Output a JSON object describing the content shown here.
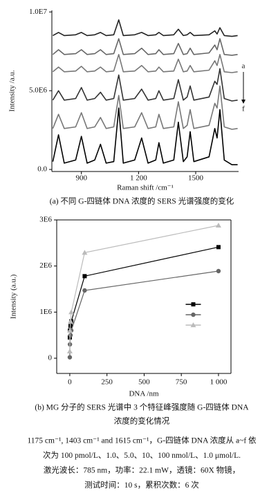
{
  "chart_data": [
    {
      "type": "line",
      "y_label": "Intensity /a.u.",
      "x_label": "Raman shift /cm⁻¹",
      "caption": "(a) 不同 G-四链体 DNA 浓度的 SERS 光谱强度的变化",
      "annotations": [
        "a",
        "f"
      ],
      "xlim": [
        745,
        1725
      ],
      "ylim": [
        -130000,
        10100000
      ],
      "xticks": [
        900,
        {
          "value": 1200,
          "label": "1 200"
        },
        1500
      ],
      "yticks": [
        {
          "value": 10000000,
          "label": "1.0E7"
        },
        {
          "value": 5000000,
          "label": "5.0E6"
        },
        {
          "value": 0,
          "label": "0.0"
        }
      ],
      "x": [
        750,
        780,
        810,
        870,
        900,
        930,
        970,
        1000,
        1030,
        1070,
        1096,
        1120,
        1180,
        1216,
        1250,
        1290,
        1307,
        1330,
        1385,
        1409,
        1435,
        1455,
        1471,
        1490,
        1570,
        1600,
        1612,
        1627,
        1650,
        1690,
        1720
      ],
      "series": [
        {
          "color": "#222222",
          "values": [
            8500000.0,
            8700000.0,
            8500000.0,
            8550000.0,
            8700000.0,
            8500000.0,
            8550000.0,
            8700000.0,
            8500000.0,
            8550000.0,
            9500000.0,
            8500000.0,
            8550000.0,
            8700000.0,
            8500000.0,
            8550000.0,
            8700000.0,
            8500000.0,
            8550000.0,
            8900000.0,
            8500000.0,
            8550000.0,
            8700000.0,
            8500000.0,
            8550000.0,
            8800000.0,
            8600000.0,
            9000000.0,
            8500000.0,
            8450000.0,
            8500000.0
          ]
        },
        {
          "color": "#666666",
          "values": [
            7300000.0,
            7600000.0,
            7300000.0,
            7350000.0,
            7600000.0,
            7300000.0,
            7350000.0,
            7600000.0,
            7300000.0,
            7350000.0,
            8300000.0,
            7300000.0,
            7350000.0,
            7700000.0,
            7300000.0,
            7350000.0,
            7600000.0,
            7300000.0,
            7350000.0,
            8000000.0,
            7300000.0,
            7350000.0,
            7700000.0,
            7300000.0,
            7400000.0,
            7900000.0,
            7600000.0,
            8300000.0,
            7300000.0,
            7250000.0,
            7300000.0
          ]
        },
        {
          "color": "#777777",
          "values": [
            6200000.0,
            6500000.0,
            6200000.0,
            6250000.0,
            6550000.0,
            6200000.0,
            6250000.0,
            6500000.0,
            6200000.0,
            6250000.0,
            7300000.0,
            6200000.0,
            6250000.0,
            6600000.0,
            6200000.0,
            6250000.0,
            6500000.0,
            6200000.0,
            6250000.0,
            7000000.0,
            6200000.0,
            6250000.0,
            6600000.0,
            6200000.0,
            6300000.0,
            6900000.0,
            6600000.0,
            7300000.0,
            6200000.0,
            6150000.0,
            6200000.0
          ]
        },
        {
          "color": "#333333",
          "values": [
            4400000.0,
            5000000.0,
            4400000.0,
            4500000.0,
            5200000.0,
            4400000.0,
            4500000.0,
            4900000.0,
            4400000.0,
            4500000.0,
            6000000.0,
            4400000.0,
            4500000.0,
            5100000.0,
            4400000.0,
            4500000.0,
            5000000.0,
            4400000.0,
            4500000.0,
            5700000.0,
            4400000.0,
            4600000.0,
            5300000.0,
            4400000.0,
            4600000.0,
            5600000.0,
            5400000.0,
            6400000.0,
            4500000.0,
            4350000.0,
            4400000.0
          ]
        },
        {
          "color": "#777777",
          "values": [
            2600000.0,
            3500000.0,
            2600000.0,
            2700000.0,
            3600000.0,
            2600000.0,
            2700000.0,
            3300000.0,
            2600000.0,
            2700000.0,
            4700000.0,
            2600000.0,
            2700000.0,
            3600000.0,
            2600000.0,
            2700000.0,
            3500000.0,
            2600000.0,
            2700000.0,
            4300000.0,
            2600000.0,
            2800000.0,
            3800000.0,
            2600000.0,
            2800000.0,
            4200000.0,
            3900000.0,
            5300000.0,
            2700000.0,
            2550000.0,
            2600000.0
          ]
        },
        {
          "color": "#000000",
          "values": [
            500000.0,
            2200000.0,
            400000.0,
            600000.0,
            2100000.0,
            400000.0,
            600000.0,
            1600000.0,
            400000.0,
            500000.0,
            3900000.0,
            400000.0,
            600000.0,
            2000000.0,
            400000.0,
            600000.0,
            1700000.0,
            400000.0,
            600000.0,
            3000000.0,
            500000.0,
            800000.0,
            2400000.0,
            500000.0,
            800000.0,
            2600000.0,
            2000000.0,
            3800000.0,
            600000.0,
            300000.0,
            300000.0
          ]
        }
      ]
    },
    {
      "type": "line",
      "y_label": "Intensity (a.u.)",
      "x_label": "DNA /nm",
      "caption": [
        "(b) MG 分子的 SERS 光谱中 3 个特征峰强度随 G-四链体 DNA",
        "浓度的变化情况"
      ],
      "legend": "center right",
      "xlim": [
        -88,
        1084
      ],
      "ylim": [
        -330000,
        3000000
      ],
      "xticks": [
        0,
        250,
        500,
        750,
        {
          "value": 1000,
          "label": "1 000"
        }
      ],
      "yticks": [
        0,
        {
          "value": 1000000,
          "label": "1E6"
        },
        {
          "value": 2000000,
          "label": "2E6"
        },
        {
          "value": 3000000,
          "label": "3E6"
        }
      ],
      "x": [
        0.1,
        1,
        5,
        10,
        100,
        1000
      ],
      "series": [
        {
          "color": "#000000",
          "marker": "square",
          "values": [
            450000,
            600000,
            700000,
            800000,
            1780000,
            2410000
          ]
        },
        {
          "color": "#666666",
          "marker": "circle",
          "values": [
            20000,
            300000,
            500000,
            600000,
            1470000,
            1890000
          ]
        },
        {
          "color": "#bbbbbb",
          "marker": "triangle",
          "values": [
            150000,
            600000,
            800000,
            1000000,
            2290000,
            2880000
          ]
        }
      ]
    }
  ],
  "notes": [
    "1175 cm⁻¹, 1403 cm⁻¹ and 1615 cm⁻¹，G-四链体 DNA 浓度从 a~f 依",
    "次为 100 pmol/L、1.0、5.0、10、100 nmol/L、1.0 μmol/L.",
    "激光波长：785 nm，功率：22.1 mW，透镜：60X 物镜，",
    "测试时间：10 s，累积次数：6 次"
  ]
}
